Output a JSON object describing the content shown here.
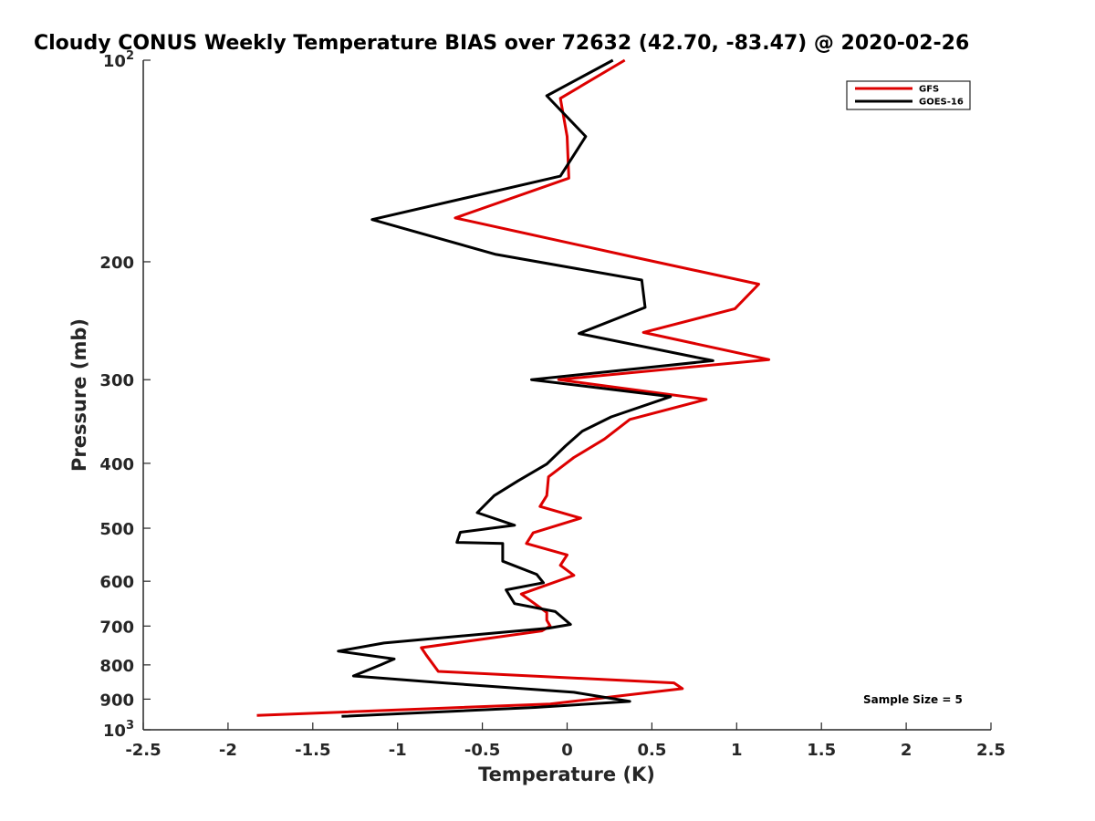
{
  "chart_data": {
    "type": "line",
    "title": "Cloudy CONUS Weekly Temperature BIAS over 72632 (42.70, -83.47) @ 2020-02-26",
    "xlabel": "Temperature (K)",
    "ylabel": "Pressure (mb)",
    "xlim": [
      -2.5,
      2.5
    ],
    "ylim": [
      100,
      1000
    ],
    "yscale": "log",
    "y_reversed": true,
    "grid": false,
    "legend_position": "top-right",
    "x_ticks": [
      -2.5,
      -2,
      -1.5,
      -1,
      -0.5,
      0,
      0.5,
      1,
      1.5,
      2,
      2.5
    ],
    "x_tick_labels": [
      "-2.5",
      "-2",
      "-1.5",
      "-1",
      "-0.5",
      "0",
      "0.5",
      "1",
      "1.5",
      "2",
      "2.5"
    ],
    "y_ticks": [
      {
        "value": 100,
        "base": "10",
        "exp": "2"
      },
      {
        "value": 200,
        "label": "200"
      },
      {
        "value": 300,
        "label": "300"
      },
      {
        "value": 400,
        "label": "400"
      },
      {
        "value": 500,
        "label": "500"
      },
      {
        "value": 600,
        "label": "600"
      },
      {
        "value": 700,
        "label": "700"
      },
      {
        "value": 800,
        "label": "800"
      },
      {
        "value": 900,
        "label": "900"
      },
      {
        "value": 1000,
        "base": "10",
        "exp": "3"
      }
    ],
    "annotation": "Sample Size = 5",
    "series": [
      {
        "name": "GFS",
        "color": "#dd0000",
        "x": [
          0.34,
          -0.04,
          0.0,
          0.01,
          -0.66,
          0.4,
          1.13,
          0.99,
          0.45,
          1.19,
          -0.05,
          0.82,
          0.37,
          0.22,
          0.04,
          -0.11,
          -0.12,
          -0.16,
          0.08,
          -0.2,
          -0.24,
          0.0,
          -0.04,
          0.04,
          -0.27,
          -0.12,
          -0.12,
          -0.1,
          -0.15,
          -0.86,
          -0.83,
          -0.76,
          0.63,
          0.68,
          -0.1,
          -1.83
        ],
        "y": [
          100,
          114,
          130,
          150,
          172,
          197,
          216,
          235,
          255,
          280,
          300,
          321,
          344,
          368,
          392,
          419,
          447,
          464,
          483,
          508,
          527,
          548,
          568,
          588,
          627,
          668,
          686,
          700,
          712,
          754,
          774,
          818,
          851,
          868,
          915,
          952
        ]
      },
      {
        "name": "GOES-16",
        "color": "#000000",
        "x": [
          0.27,
          -0.12,
          0.11,
          -0.04,
          -1.15,
          -0.42,
          0.44,
          0.46,
          0.07,
          0.86,
          -0.21,
          0.61,
          0.26,
          0.09,
          -0.01,
          -0.12,
          -0.29,
          -0.43,
          -0.53,
          -0.31,
          -0.63,
          -0.65,
          -0.38,
          -0.38,
          -0.18,
          -0.14,
          -0.36,
          -0.31,
          -0.07,
          0.02,
          -0.11,
          -1.08,
          -1.35,
          -1.02,
          -1.1,
          -1.26,
          -0.71,
          0.04,
          0.37,
          -0.19,
          -1.33
        ],
        "y": [
          100,
          113,
          130,
          149,
          173,
          195,
          213,
          234,
          256,
          281,
          300,
          318,
          341,
          358,
          377,
          401,
          425,
          447,
          474,
          495,
          507,
          525,
          527,
          560,
          586,
          603,
          618,
          648,
          666,
          696,
          705,
          742,
          763,
          784,
          800,
          831,
          852,
          879,
          907,
          926,
          955
        ]
      }
    ]
  }
}
